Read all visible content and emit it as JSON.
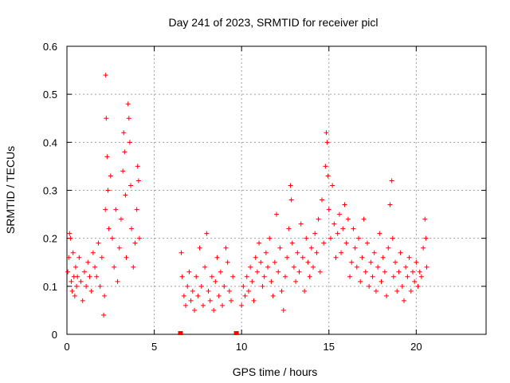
{
  "chart_data": {
    "type": "scatter",
    "title": "Day 241 of 2023, SRMTID for receiver picl",
    "xlabel": "GPS time / hours",
    "ylabel": "SRMTID / TECUs",
    "xlim": [
      0,
      24
    ],
    "ylim": [
      0,
      0.6
    ],
    "xticks": [
      0,
      5,
      10,
      15,
      20
    ],
    "yticks": [
      0,
      0.1,
      0.2,
      0.3,
      0.4,
      0.5,
      0.6
    ],
    "grid": true,
    "marker": "+",
    "series": [
      {
        "name": "SRMTID",
        "color": "#ff0000",
        "points": [
          [
            0.05,
            0.13
          ],
          [
            0.1,
            0.16
          ],
          [
            0.15,
            0.21
          ],
          [
            0.2,
            0.2
          ],
          [
            0.25,
            0.11
          ],
          [
            0.3,
            0.09
          ],
          [
            0.35,
            0.17
          ],
          [
            0.4,
            0.12
          ],
          [
            0.45,
            0.08
          ],
          [
            0.5,
            0.14
          ],
          [
            0.55,
            0.1
          ],
          [
            0.6,
            0.12
          ],
          [
            0.7,
            0.16
          ],
          [
            0.8,
            0.11
          ],
          [
            0.9,
            0.07
          ],
          [
            1.0,
            0.13
          ],
          [
            1.1,
            0.1
          ],
          [
            1.2,
            0.15
          ],
          [
            1.3,
            0.12
          ],
          [
            1.4,
            0.09
          ],
          [
            1.5,
            0.17
          ],
          [
            1.6,
            0.14
          ],
          [
            1.7,
            0.12
          ],
          [
            1.8,
            0.19
          ],
          [
            1.9,
            0.1
          ],
          [
            2.0,
            0.16
          ],
          [
            2.1,
            0.04
          ],
          [
            2.15,
            0.08
          ],
          [
            2.2,
            0.26
          ],
          [
            2.22,
            0.54
          ],
          [
            2.25,
            0.45
          ],
          [
            2.3,
            0.37
          ],
          [
            2.35,
            0.3
          ],
          [
            2.4,
            0.22
          ],
          [
            2.5,
            0.33
          ],
          [
            2.6,
            0.2
          ],
          [
            2.7,
            0.14
          ],
          [
            2.8,
            0.26
          ],
          [
            2.9,
            0.11
          ],
          [
            3.0,
            0.18
          ],
          [
            3.1,
            0.24
          ],
          [
            3.2,
            0.34
          ],
          [
            3.25,
            0.42
          ],
          [
            3.3,
            0.38
          ],
          [
            3.35,
            0.29
          ],
          [
            3.4,
            0.16
          ],
          [
            3.5,
            0.48
          ],
          [
            3.55,
            0.45
          ],
          [
            3.6,
            0.4
          ],
          [
            3.65,
            0.31
          ],
          [
            3.7,
            0.22
          ],
          [
            3.8,
            0.14
          ],
          [
            3.9,
            0.19
          ],
          [
            4.0,
            0.26
          ],
          [
            4.05,
            0.35
          ],
          [
            4.1,
            0.32
          ],
          [
            4.15,
            0.2
          ],
          [
            6.55,
            0.17
          ],
          [
            6.6,
            0.12
          ],
          [
            6.7,
            0.08
          ],
          [
            6.8,
            0.06
          ],
          [
            6.9,
            0.1
          ],
          [
            7.0,
            0.13
          ],
          [
            7.1,
            0.07
          ],
          [
            7.2,
            0.09
          ],
          [
            7.3,
            0.05
          ],
          [
            7.4,
            0.12
          ],
          [
            7.5,
            0.08
          ],
          [
            7.6,
            0.18
          ],
          [
            7.7,
            0.1
          ],
          [
            7.8,
            0.06
          ],
          [
            7.9,
            0.14
          ],
          [
            8.0,
            0.21
          ],
          [
            8.1,
            0.09
          ],
          [
            8.2,
            0.07
          ],
          [
            8.3,
            0.12
          ],
          [
            8.4,
            0.05
          ],
          [
            8.5,
            0.11
          ],
          [
            8.6,
            0.16
          ],
          [
            8.7,
            0.08
          ],
          [
            8.8,
            0.13
          ],
          [
            8.9,
            0.06
          ],
          [
            9.0,
            0.1
          ],
          [
            9.1,
            0.18
          ],
          [
            9.2,
            0.15
          ],
          [
            9.3,
            0.09
          ],
          [
            9.4,
            0.07
          ],
          [
            9.5,
            0.12
          ],
          [
            10.0,
            0.06
          ],
          [
            10.1,
            0.1
          ],
          [
            10.2,
            0.08
          ],
          [
            10.3,
            0.12
          ],
          [
            10.4,
            0.09
          ],
          [
            10.5,
            0.14
          ],
          [
            10.6,
            0.11
          ],
          [
            10.7,
            0.07
          ],
          [
            10.8,
            0.16
          ],
          [
            10.9,
            0.13
          ],
          [
            11.0,
            0.19
          ],
          [
            11.1,
            0.15
          ],
          [
            11.2,
            0.1
          ],
          [
            11.3,
            0.12
          ],
          [
            11.4,
            0.17
          ],
          [
            11.5,
            0.14
          ],
          [
            11.6,
            0.2
          ],
          [
            11.7,
            0.11
          ],
          [
            11.8,
            0.08
          ],
          [
            11.9,
            0.15
          ],
          [
            12.0,
            0.25
          ],
          [
            12.1,
            0.13
          ],
          [
            12.2,
            0.18
          ],
          [
            12.3,
            0.09
          ],
          [
            12.4,
            0.05
          ],
          [
            12.5,
            0.12
          ],
          [
            12.6,
            0.16
          ],
          [
            12.7,
            0.22
          ],
          [
            12.8,
            0.31
          ],
          [
            12.85,
            0.28
          ],
          [
            12.9,
            0.19
          ],
          [
            13.0,
            0.14
          ],
          [
            13.1,
            0.11
          ],
          [
            13.2,
            0.17
          ],
          [
            13.3,
            0.13
          ],
          [
            13.4,
            0.23
          ],
          [
            13.5,
            0.16
          ],
          [
            13.6,
            0.09
          ],
          [
            13.7,
            0.2
          ],
          [
            13.8,
            0.15
          ],
          [
            13.9,
            0.12
          ],
          [
            14.0,
            0.18
          ],
          [
            14.1,
            0.14
          ],
          [
            14.2,
            0.21
          ],
          [
            14.3,
            0.17
          ],
          [
            14.4,
            0.24
          ],
          [
            14.5,
            0.13
          ],
          [
            14.6,
            0.28
          ],
          [
            14.7,
            0.19
          ],
          [
            14.8,
            0.35
          ],
          [
            14.85,
            0.42
          ],
          [
            14.9,
            0.4
          ],
          [
            14.95,
            0.33
          ],
          [
            15.0,
            0.26
          ],
          [
            15.1,
            0.2
          ],
          [
            15.2,
            0.31
          ],
          [
            15.3,
            0.23
          ],
          [
            15.4,
            0.16
          ],
          [
            15.5,
            0.21
          ],
          [
            15.6,
            0.25
          ],
          [
            15.7,
            0.17
          ],
          [
            15.8,
            0.22
          ],
          [
            15.9,
            0.27
          ],
          [
            16.0,
            0.19
          ],
          [
            16.1,
            0.24
          ],
          [
            16.2,
            0.12
          ],
          [
            16.3,
            0.15
          ],
          [
            16.4,
            0.22
          ],
          [
            16.5,
            0.18
          ],
          [
            16.6,
            0.14
          ],
          [
            16.7,
            0.2
          ],
          [
            16.8,
            0.11
          ],
          [
            16.9,
            0.16
          ],
          [
            17.0,
            0.24
          ],
          [
            17.1,
            0.13
          ],
          [
            17.2,
            0.19
          ],
          [
            17.3,
            0.1
          ],
          [
            17.4,
            0.15
          ],
          [
            17.5,
            0.12
          ],
          [
            17.6,
            0.17
          ],
          [
            17.7,
            0.09
          ],
          [
            17.8,
            0.14
          ],
          [
            17.9,
            0.21
          ],
          [
            18.0,
            0.11
          ],
          [
            18.1,
            0.16
          ],
          [
            18.2,
            0.13
          ],
          [
            18.3,
            0.08
          ],
          [
            18.4,
            0.18
          ],
          [
            18.5,
            0.27
          ],
          [
            18.6,
            0.32
          ],
          [
            18.65,
            0.2
          ],
          [
            18.7,
            0.12
          ],
          [
            18.8,
            0.15
          ],
          [
            18.9,
            0.09
          ],
          [
            19.0,
            0.13
          ],
          [
            19.1,
            0.17
          ],
          [
            19.2,
            0.1
          ],
          [
            19.3,
            0.07
          ],
          [
            19.4,
            0.14
          ],
          [
            19.5,
            0.12
          ],
          [
            19.6,
            0.16
          ],
          [
            19.7,
            0.09
          ],
          [
            19.8,
            0.13
          ],
          [
            19.9,
            0.11
          ],
          [
            20.0,
            0.15
          ],
          [
            20.1,
            0.1
          ],
          [
            20.2,
            0.13
          ],
          [
            20.3,
            0.12
          ],
          [
            20.4,
            0.18
          ],
          [
            20.5,
            0.24
          ],
          [
            20.55,
            0.2
          ],
          [
            20.6,
            0.14
          ]
        ]
      }
    ],
    "gap_markers": [
      6.5,
      9.7
    ]
  }
}
